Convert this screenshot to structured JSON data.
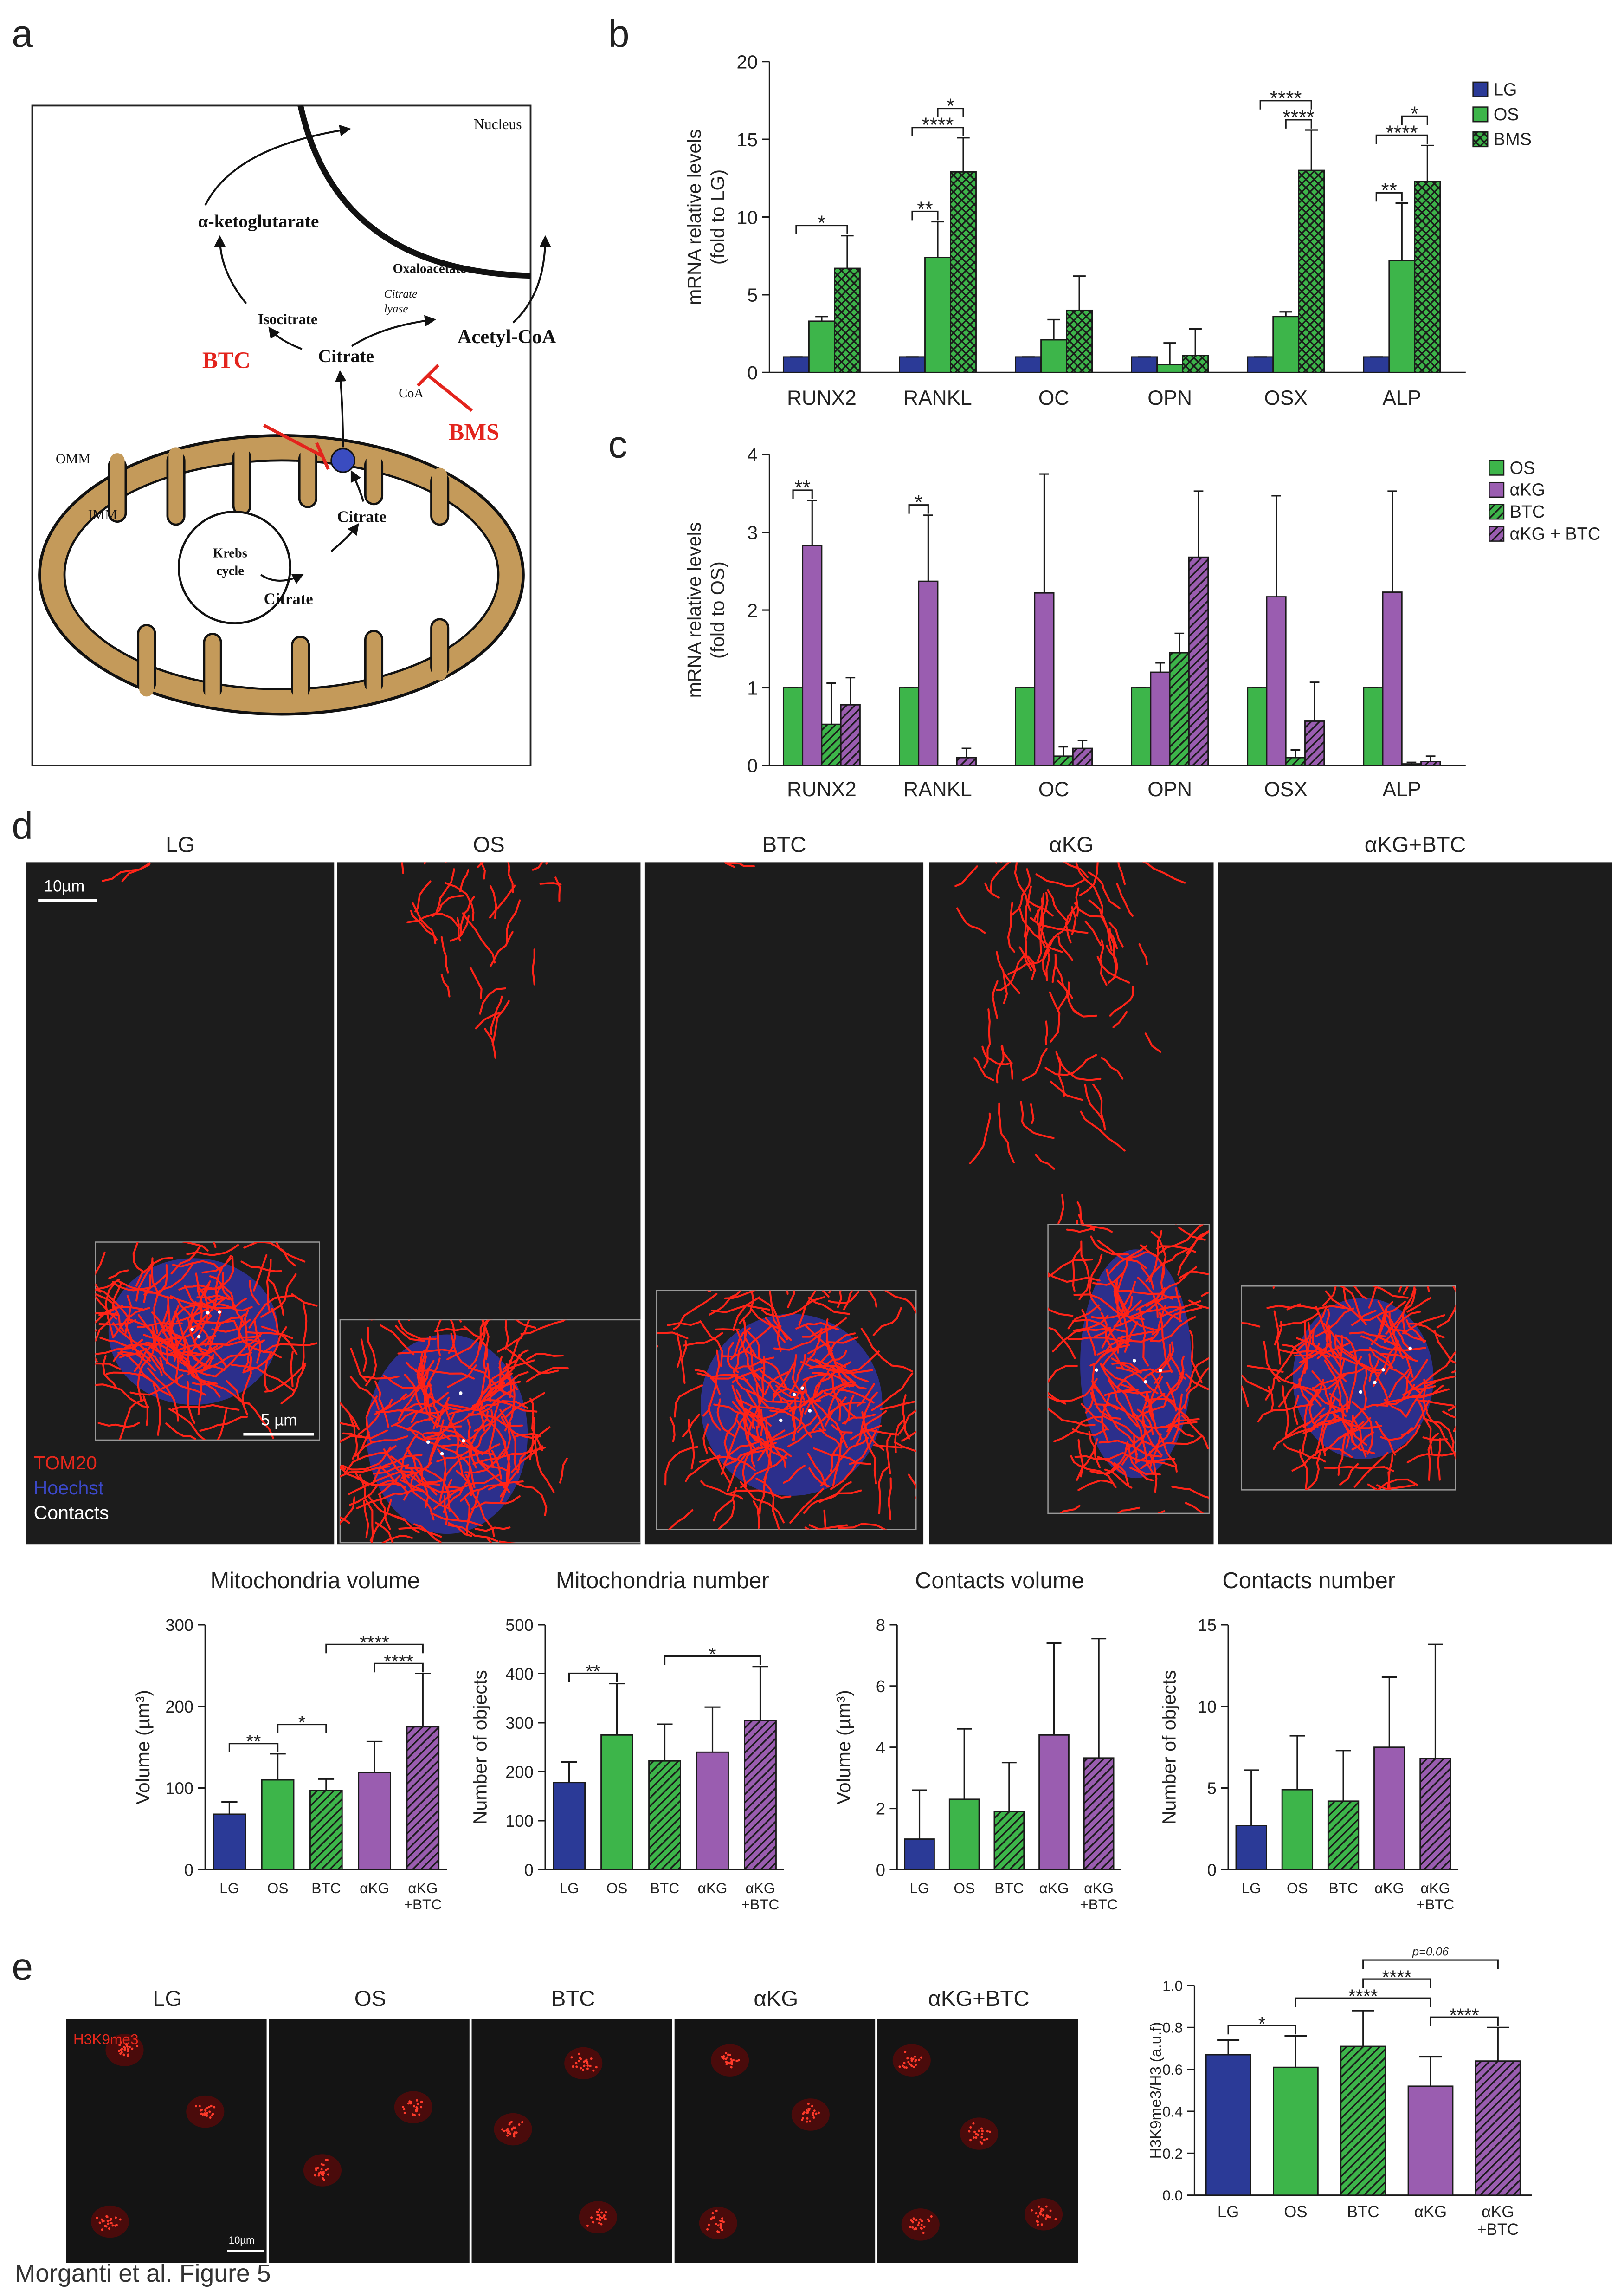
{
  "panel_labels": [
    "a",
    "b",
    "c",
    "d",
    "e"
  ],
  "diagram": {
    "nucleus": "Nucleus",
    "akg": "α-ketoglutarate",
    "isocitrate": "Isocitrate",
    "oxaloacetate": "Oxaloacetate",
    "citrate_lyase": [
      "Citrate",
      "lyase"
    ],
    "acetyl_coa": "Acetyl-CoA",
    "citrate_cytosol": "Citrate",
    "coa": "CoA",
    "btc": "BTC",
    "bms": "BMS",
    "omm": "OMM",
    "imm": "IMM",
    "krebs": [
      "Krebs",
      "cycle"
    ],
    "citrate_matrix": "Citrate",
    "citrate_ims": "Citrate"
  },
  "microscopy": {
    "columns": [
      "LG",
      "OS",
      "BTC",
      "αKG",
      "αKG+BTC"
    ],
    "scale_bar": "10µm",
    "inset_scale_bar": "5 µm",
    "legend": [
      "TOM20",
      "Hoechst",
      "Contacts"
    ]
  },
  "imaging_e": {
    "columns": [
      "LG",
      "OS",
      "BTC",
      "αKG",
      "αKG+BTC"
    ],
    "stain": "H3K9me3",
    "scale_bar": "10µm"
  },
  "chart_data": [
    {
      "type": "bar",
      "ylabel": [
        "mRNA relative levels",
        "(fold to LG)"
      ],
      "categories": [
        "RUNX2",
        "RANKL",
        "OC",
        "OPN",
        "OSX",
        "ALP"
      ],
      "series": [
        {
          "name": "LG",
          "color": "#2b3a97",
          "hatch": "none",
          "values": [
            1,
            1,
            1,
            1,
            1,
            1
          ],
          "errors": [
            0,
            0,
            0,
            0,
            0,
            0
          ]
        },
        {
          "name": "OS",
          "color": "#3db54a",
          "hatch": "none",
          "values": [
            3.3,
            7.4,
            2.1,
            0.5,
            3.6,
            7.2
          ],
          "errors": [
            0.3,
            2.3,
            1.3,
            1.4,
            0.3,
            3.7
          ]
        },
        {
          "name": "BMS",
          "color": "#3db54a",
          "hatch": "cross",
          "values": [
            6.7,
            12.9,
            4.0,
            1.1,
            13.0,
            12.3
          ],
          "errors": [
            2.1,
            2.2,
            2.2,
            1.7,
            2.6,
            2.3
          ]
        }
      ],
      "ylim": [
        0,
        20
      ],
      "yticks": [
        0,
        5,
        10,
        15,
        20
      ],
      "legend": "upper right",
      "annotations": [
        {
          "label": "*",
          "from": [
            0,
            0
          ],
          "to": [
            0,
            2
          ]
        },
        {
          "label": "**",
          "from": [
            1,
            0
          ],
          "to": [
            1,
            1
          ]
        },
        {
          "label": "****",
          "from": [
            1,
            0
          ],
          "to": [
            1,
            2
          ]
        },
        {
          "label": "*",
          "from": [
            1,
            1
          ],
          "to": [
            1,
            2
          ]
        },
        {
          "label": "****",
          "from": [
            4,
            1
          ],
          "to": [
            4,
            2
          ]
        },
        {
          "label": "****",
          "from": [
            4,
            0
          ],
          "to": [
            4,
            2
          ]
        },
        {
          "label": "**",
          "from": [
            5,
            0
          ],
          "to": [
            5,
            1
          ]
        },
        {
          "label": "****",
          "from": [
            5,
            0
          ],
          "to": [
            5,
            2
          ]
        },
        {
          "label": "*",
          "from": [
            5,
            1
          ],
          "to": [
            5,
            2
          ]
        }
      ]
    },
    {
      "type": "bar",
      "ylabel": [
        "mRNA relative levels",
        "(fold to OS)"
      ],
      "categories": [
        "RUNX2",
        "RANKL",
        "OC",
        "OPN",
        "OSX",
        "ALP"
      ],
      "series": [
        {
          "name": "OS",
          "color": "#3db54a",
          "hatch": "none",
          "values": [
            1,
            1,
            1,
            1,
            1,
            1
          ],
          "errors": [
            0,
            0,
            0,
            0,
            0,
            0
          ]
        },
        {
          "name": "αKG",
          "color": "#9a5db0",
          "hatch": "none",
          "values": [
            2.83,
            2.37,
            2.22,
            1.2,
            2.17,
            2.23
          ],
          "errors": [
            0.58,
            0.85,
            1.53,
            0.12,
            1.3,
            1.3
          ]
        },
        {
          "name": "BTC",
          "color": "#3db54a",
          "hatch": "diagonal",
          "values": [
            0.53,
            0,
            0.12,
            1.45,
            0.1,
            0.02
          ],
          "errors": [
            0.53,
            0,
            0.12,
            0.25,
            0.1,
            0.02
          ]
        },
        {
          "name": "αKG + BTC",
          "color": "#9a5db0",
          "hatch": "diagonal",
          "values": [
            0.78,
            0.1,
            0.22,
            2.68,
            0.57,
            0.05
          ],
          "errors": [
            0.35,
            0.12,
            0.1,
            0.85,
            0.5,
            0.07
          ]
        }
      ],
      "ylim": [
        0,
        4
      ],
      "yticks": [
        0,
        1,
        2,
        3,
        4
      ],
      "legend": "upper right",
      "annotations": [
        {
          "label": "**",
          "from": [
            0,
            0
          ],
          "to": [
            0,
            1
          ]
        },
        {
          "label": "*",
          "from": [
            1,
            0
          ],
          "to": [
            1,
            1
          ]
        }
      ]
    },
    {
      "type": "bar",
      "title": "Mitochondria volume",
      "ylabel": "Volume (µm³)",
      "categories": [
        "LG",
        "OS",
        "BTC",
        "αKG",
        [
          "αKG",
          "+BTC"
        ]
      ],
      "colors": [
        "#2b3a97",
        "#3db54a",
        "#3db54a",
        "#9a5db0",
        "#9a5db0"
      ],
      "hatches": [
        "none",
        "none",
        "diagonal",
        "none",
        "diagonal"
      ],
      "values": [
        68,
        110,
        97,
        119,
        175
      ],
      "errors": [
        15,
        32,
        14,
        38,
        65
      ],
      "ylim": [
        0,
        300
      ],
      "yticks": [
        0,
        100,
        200,
        300
      ],
      "annotations": [
        {
          "label": "**",
          "from": 0,
          "to": 1
        },
        {
          "label": "*",
          "from": 1,
          "to": 2
        },
        {
          "label": "****",
          "from": 3,
          "to": 4
        },
        {
          "label": "****",
          "from": 2,
          "to": 4
        }
      ]
    },
    {
      "type": "bar",
      "title": "Mitochondria number",
      "ylabel": "Number of objects",
      "categories": [
        "LG",
        "OS",
        "BTC",
        "αKG",
        [
          "αKG",
          "+BTC"
        ]
      ],
      "colors": [
        "#2b3a97",
        "#3db54a",
        "#3db54a",
        "#9a5db0",
        "#9a5db0"
      ],
      "hatches": [
        "none",
        "none",
        "diagonal",
        "none",
        "diagonal"
      ],
      "values": [
        178,
        275,
        222,
        240,
        305
      ],
      "errors": [
        42,
        105,
        75,
        92,
        110
      ],
      "ylim": [
        0,
        500
      ],
      "yticks": [
        0,
        100,
        200,
        300,
        400,
        500
      ],
      "annotations": [
        {
          "label": "**",
          "from": 0,
          "to": 1
        },
        {
          "label": "*",
          "from": 2,
          "to": 4
        }
      ]
    },
    {
      "type": "bar",
      "title": "Contacts  volume",
      "ylabel": "Volume (µm³)",
      "categories": [
        "LG",
        "OS",
        "BTC",
        "αKG",
        [
          "αKG",
          "+BTC"
        ]
      ],
      "colors": [
        "#2b3a97",
        "#3db54a",
        "#3db54a",
        "#9a5db0",
        "#9a5db0"
      ],
      "hatches": [
        "none",
        "none",
        "diagonal",
        "none",
        "diagonal"
      ],
      "values": [
        1.0,
        2.3,
        1.9,
        4.4,
        3.65
      ],
      "errors": [
        1.6,
        2.3,
        1.6,
        3.0,
        3.9
      ],
      "ylim": [
        0,
        8
      ],
      "yticks": [
        0,
        2,
        4,
        6,
        8
      ]
    },
    {
      "type": "bar",
      "title": "Contacts number",
      "ylabel": "Number of objects",
      "categories": [
        "LG",
        "OS",
        "BTC",
        "αKG",
        [
          "αKG",
          "+BTC"
        ]
      ],
      "colors": [
        "#2b3a97",
        "#3db54a",
        "#3db54a",
        "#9a5db0",
        "#9a5db0"
      ],
      "hatches": [
        "none",
        "none",
        "diagonal",
        "none",
        "diagonal"
      ],
      "values": [
        2.7,
        4.9,
        4.2,
        7.5,
        6.8
      ],
      "errors": [
        3.4,
        3.3,
        3.1,
        4.3,
        7.0
      ],
      "ylim": [
        0,
        15
      ],
      "yticks": [
        0,
        5,
        10,
        15
      ]
    },
    {
      "type": "bar",
      "ylabel": "H3K9me3/H3 (a.u.f)",
      "categories": [
        "LG",
        "OS",
        "BTC",
        "αKG",
        [
          "αKG",
          "+BTC"
        ]
      ],
      "colors": [
        "#2b3a97",
        "#3db54a",
        "#3db54a",
        "#9a5db0",
        "#9a5db0"
      ],
      "hatches": [
        "none",
        "none",
        "diagonal",
        "none",
        "diagonal"
      ],
      "values": [
        0.67,
        0.61,
        0.71,
        0.52,
        0.64
      ],
      "errors": [
        0.07,
        0.15,
        0.17,
        0.14,
        0.16
      ],
      "ylim": [
        0,
        1
      ],
      "yticks": [
        {
          "value": 0,
          "label": "0.0"
        },
        0.2,
        0.4,
        0.6,
        0.8,
        {
          "value": 1,
          "label": "1.0"
        }
      ],
      "annotations": [
        {
          "label": "*",
          "from": 0,
          "to": 1
        },
        {
          "label": "****",
          "from": 3,
          "to": 4
        },
        {
          "label": "****",
          "from": 1,
          "to": 3
        },
        {
          "label": "****",
          "from": 2,
          "to": 3
        },
        {
          "label": "p=0.06",
          "from": 2,
          "to": 4
        }
      ]
    }
  ],
  "footer": "Morganti et al. Figure 5"
}
